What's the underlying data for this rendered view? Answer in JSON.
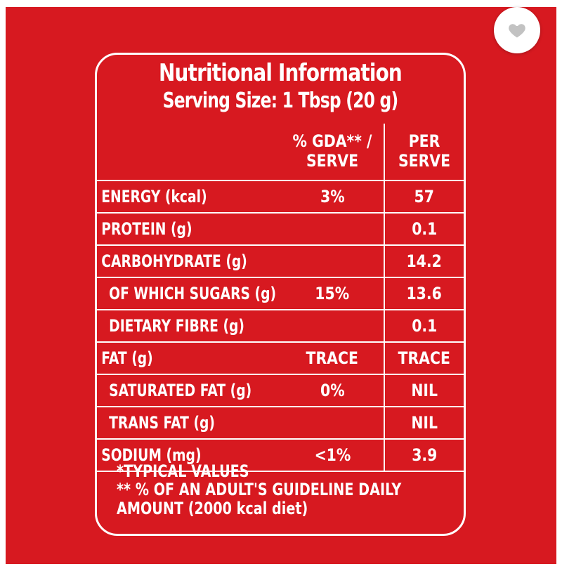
{
  "favorite": {
    "icon": "heart-icon"
  },
  "panel": {
    "title": "Nutritional Information",
    "subtitle": "Serving Size: 1 Tbsp (20 g)"
  },
  "table": {
    "headers": {
      "nutrient": "",
      "gda": "% GDA** / SERVE",
      "per_serve": "PER SERVE"
    },
    "rows": [
      {
        "nutrient": "ENERGY (kcal)",
        "gda": "3%",
        "per_serve": "57",
        "indent": false
      },
      {
        "nutrient": "PROTEIN (g)",
        "gda": "",
        "per_serve": "0.1",
        "indent": false
      },
      {
        "nutrient": "CARBOHYDRATE (g)",
        "gda": "",
        "per_serve": "14.2",
        "indent": false
      },
      {
        "nutrient": "OF WHICH SUGARS (g)",
        "gda": "15%",
        "per_serve": "13.6",
        "indent": true
      },
      {
        "nutrient": "DIETARY FIBRE (g)",
        "gda": "",
        "per_serve": "0.1",
        "indent": true
      },
      {
        "nutrient": "FAT (g)",
        "gda": "TRACE",
        "per_serve": "TRACE",
        "indent": false
      },
      {
        "nutrient": "SATURATED FAT (g)",
        "gda": "0%",
        "per_serve": "NIL",
        "indent": true
      },
      {
        "nutrient": "TRANS FAT (g)",
        "gda": "",
        "per_serve": "NIL",
        "indent": true
      },
      {
        "nutrient": "SODIUM (mg)",
        "gda": "<1%",
        "per_serve": "3.9",
        "indent": false
      }
    ]
  },
  "footnotes": {
    "line1": "*TYPICAL VALUES",
    "line2": "** % OF AN ADULT'S GUIDELINE DAILY",
    "line3": "AMOUNT (2000 kcal diet)"
  },
  "colors": {
    "background": "#d71920",
    "text": "#ffffff"
  }
}
